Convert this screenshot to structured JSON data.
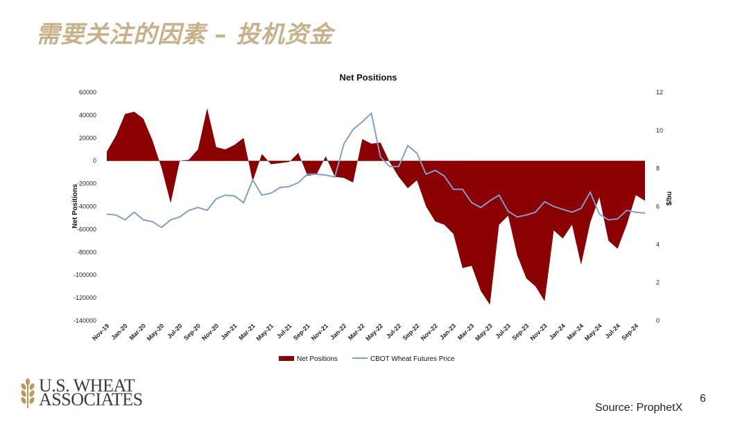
{
  "slide": {
    "title": "需要关注的因素 – 投机资金",
    "page_number": "6",
    "source": "Source: ProphetX",
    "logo_line1": "U.S. WHEAT",
    "logo_line2": "ASSOCIATES"
  },
  "colors": {
    "net_positions": "#8b0000",
    "price": "#7f9fcf",
    "title": "#c8b088"
  },
  "chart_data": {
    "type": "area",
    "title": "Net Positions",
    "ylabel": "Net Positions",
    "y2label": "$/bu",
    "ylim": [
      -140000,
      60000
    ],
    "y2lim": [
      0,
      12
    ],
    "yticks": [
      60000,
      40000,
      20000,
      0,
      -20000,
      -40000,
      -60000,
      -80000,
      -100000,
      -120000,
      -140000
    ],
    "y2ticks": [
      12,
      10,
      8,
      6,
      4,
      2,
      0
    ],
    "grid": false,
    "legend": "bottom",
    "xticks": [
      "Nov-19",
      "Jan-20",
      "Mar-20",
      "May-20",
      "Jul-20",
      "Sep-20",
      "Nov-20",
      "Jan-21",
      "Mar-21",
      "May-21",
      "Jul-21",
      "Sep-21",
      "Nov-21",
      "Jan-22",
      "Mar-22",
      "May-22",
      "Jul-22",
      "Sep-22",
      "Nov-22",
      "Jan-23",
      "Mar-23",
      "May-23",
      "Jul-23",
      "Sep-23",
      "Nov-23",
      "Jan-24",
      "Mar-24",
      "May-24",
      "Jul-24",
      "Sep-24"
    ],
    "series": [
      {
        "name": "Net Positions",
        "axis": "left",
        "type": "area",
        "values": [
          8000,
          22000,
          41000,
          43000,
          37000,
          18000,
          -6000,
          -37000,
          0,
          1000,
          10000,
          46000,
          12000,
          10000,
          14000,
          20000,
          -18000,
          6000,
          -3000,
          -2000,
          -1000,
          7000,
          -13000,
          -12000,
          4000,
          -14000,
          -15000,
          -19000,
          19000,
          15000,
          16000,
          -1000,
          -14000,
          -24000,
          -17000,
          -40000,
          -53000,
          -56000,
          -64000,
          -94000,
          -92000,
          -114000,
          -126000,
          -56000,
          -48000,
          -83000,
          -103000,
          -110000,
          -123000,
          -61000,
          -68000,
          -56000,
          -91000,
          -54000,
          -32000,
          -70000,
          -77000,
          -56000,
          -30000,
          -35000
        ]
      },
      {
        "name": "CBOT Wheat Futures Price",
        "axis": "right",
        "type": "line",
        "values": [
          5.6,
          5.55,
          5.3,
          5.7,
          5.3,
          5.2,
          4.9,
          5.3,
          5.45,
          5.8,
          5.95,
          5.8,
          6.4,
          6.6,
          6.55,
          6.2,
          7.4,
          6.6,
          6.7,
          7.0,
          7.05,
          7.25,
          7.7,
          7.7,
          7.65,
          7.55,
          9.3,
          10.05,
          10.45,
          10.9,
          8.6,
          8.1,
          8.1,
          9.2,
          8.8,
          7.7,
          7.9,
          7.6,
          6.9,
          6.9,
          6.2,
          5.95,
          6.3,
          6.6,
          5.75,
          5.45,
          5.55,
          5.7,
          6.25,
          6.0,
          5.85,
          5.7,
          5.9,
          6.75,
          5.6,
          5.3,
          5.35,
          5.8,
          5.7,
          5.65
        ]
      }
    ]
  }
}
